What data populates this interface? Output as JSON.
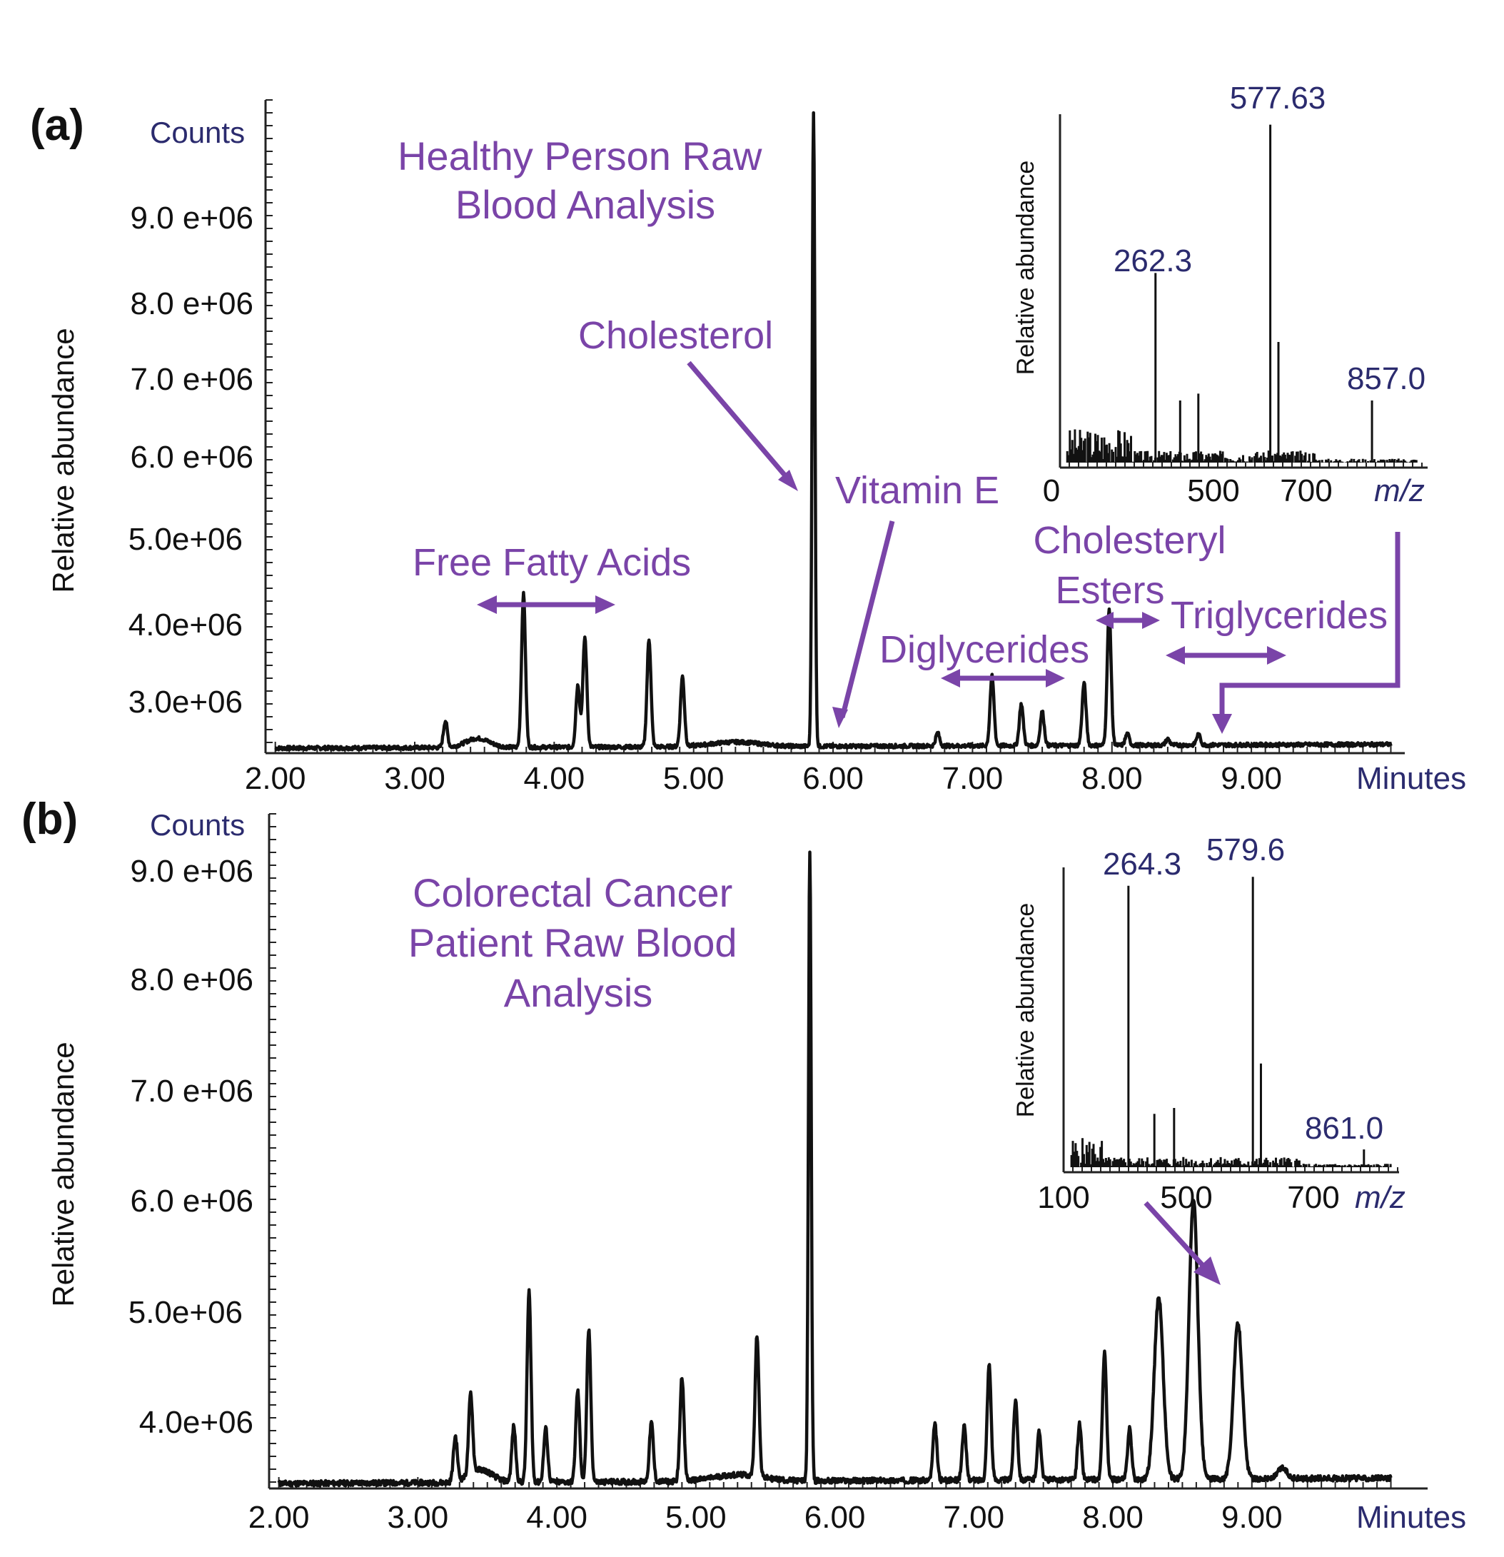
{
  "chart_data": [
    {
      "panel": "(a)",
      "type": "line",
      "title": "Healthy Person Raw\nBlood Analysis",
      "xlabel": "Minutes",
      "ylabel": "Relative abundance",
      "yunit": "Counts",
      "x_ticks": [
        "2.00",
        "3.00",
        "4.00",
        "5.00",
        "6.00",
        "7.00",
        "8.00",
        "9.00"
      ],
      "xlim": [
        1.93,
        10.1
      ],
      "y_ticks": [
        "9.0 e+06",
        "8.0 e+06",
        "7.0 e+06",
        "6.0 e+06",
        "5.0e+06",
        "4.0e+06",
        "3.0e+06"
      ],
      "baseline": 2.0,
      "peaks": [
        {
          "x": 3.22,
          "y": 2.35
        },
        {
          "x": 3.78,
          "y": 4.02
        },
        {
          "x": 4.17,
          "y": 2.82
        },
        {
          "x": 4.22,
          "y": 3.45
        },
        {
          "x": 4.68,
          "y": 3.42
        },
        {
          "x": 4.92,
          "y": 2.92
        },
        {
          "x": 5.86,
          "y": 10.35
        },
        {
          "x": 6.75,
          "y": 2.17
        },
        {
          "x": 7.14,
          "y": 2.92
        },
        {
          "x": 7.35,
          "y": 2.55
        },
        {
          "x": 7.5,
          "y": 2.45
        },
        {
          "x": 7.8,
          "y": 2.82
        },
        {
          "x": 7.98,
          "y": 3.78
        },
        {
          "x": 8.11,
          "y": 2.15
        },
        {
          "x": 8.4,
          "y": 2.08
        },
        {
          "x": 8.62,
          "y": 2.14
        }
      ],
      "annotations": [
        "Cholesterol",
        "Vitamin E",
        "Free Fatty Acids",
        "Cholesteryl\nEsters",
        "Triglycerides",
        "Diglycerides"
      ],
      "inset": {
        "ylabel": "Relative abundance",
        "xlabel": "m/z",
        "x_ticks": [
          "0",
          "500",
          "700"
        ],
        "peak_labels": [
          "577.63",
          "262.3",
          "857.0"
        ],
        "sticks": [
          {
            "mz": 262.3,
            "h": 0.55
          },
          {
            "mz": 577.63,
            "h": 0.98
          },
          {
            "mz": 857.0,
            "h": 0.18
          }
        ]
      }
    },
    {
      "panel": "(b)",
      "type": "line",
      "title": "Colorectal Cancer\nPatient Raw Blood\nAnalysis",
      "xlabel": "Minutes",
      "ylabel": "Relative abundance",
      "yunit": "Counts",
      "x_ticks": [
        "2.00",
        "3.00",
        "4.00",
        "5.00",
        "6.00",
        "7.00",
        "8.00",
        "9.00"
      ],
      "xlim": [
        1.93,
        10.1
      ],
      "y_ticks": [
        "9.0 e+06",
        "8.0 e+06",
        "7.0 e+06",
        "6.0 e+06",
        "5.0e+06",
        "4.0e+06"
      ],
      "baseline": 3.3,
      "peaks": [
        {
          "x": 3.27,
          "y": 3.72
        },
        {
          "x": 3.38,
          "y": 4.05
        },
        {
          "x": 3.69,
          "y": 3.82
        },
        {
          "x": 3.8,
          "y": 5.08
        },
        {
          "x": 3.92,
          "y": 3.8
        },
        {
          "x": 4.15,
          "y": 4.15
        },
        {
          "x": 4.23,
          "y": 4.72
        },
        {
          "x": 4.68,
          "y": 3.85
        },
        {
          "x": 4.9,
          "y": 4.28
        },
        {
          "x": 5.44,
          "y": 4.62
        },
        {
          "x": 5.82,
          "y": 9.18
        },
        {
          "x": 6.72,
          "y": 3.82
        },
        {
          "x": 6.93,
          "y": 3.8
        },
        {
          "x": 7.11,
          "y": 4.38
        },
        {
          "x": 7.3,
          "y": 4.05
        },
        {
          "x": 7.47,
          "y": 3.75
        },
        {
          "x": 7.76,
          "y": 3.82
        },
        {
          "x": 7.94,
          "y": 4.5
        },
        {
          "x": 8.12,
          "y": 3.78
        },
        {
          "x": 8.33,
          "y": 5.0
        },
        {
          "x": 8.58,
          "y": 5.9
        },
        {
          "x": 8.9,
          "y": 4.75
        },
        {
          "x": 9.22,
          "y": 3.4
        }
      ],
      "inset": {
        "ylabel": "Relative abundance",
        "xlabel": "m/z",
        "x_ticks": [
          "100",
          "500",
          "700"
        ],
        "peak_labels": [
          "264.3",
          "579.6",
          "861.0"
        ],
        "sticks": [
          {
            "mz": 264.3,
            "h": 0.95
          },
          {
            "mz": 579.6,
            "h": 0.98
          },
          {
            "mz": 861.0,
            "h": 0.06
          }
        ]
      }
    }
  ]
}
